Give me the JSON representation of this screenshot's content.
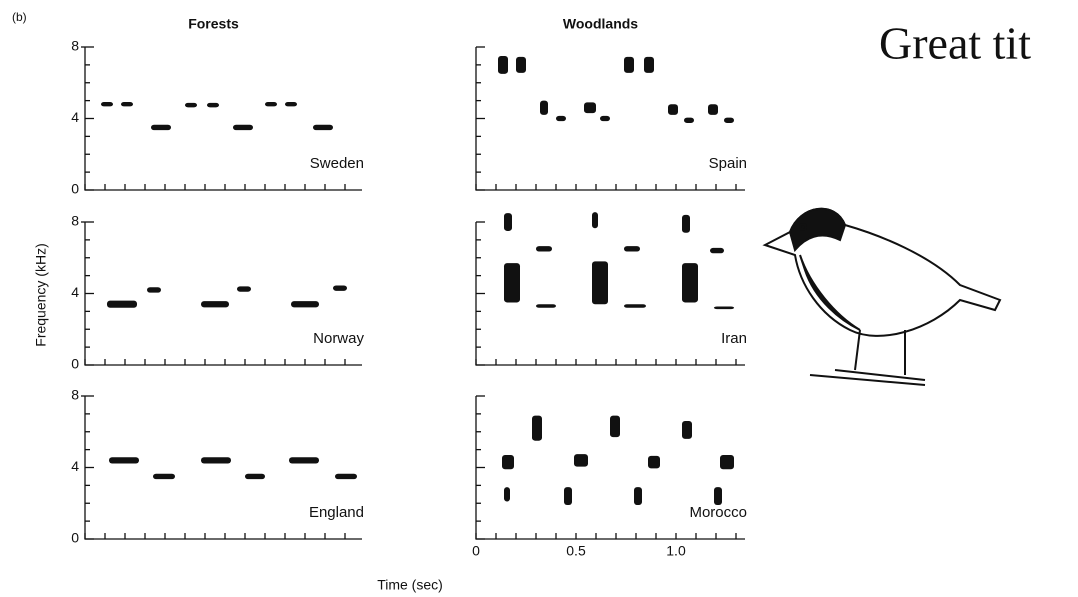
{
  "panel_tag": "(b)",
  "title": "Great tit",
  "y_axis_label": "Frequency (kHz)",
  "x_axis_label": "Time (sec)",
  "y_ticks": [
    "0",
    "4",
    "8"
  ],
  "x_ticks": [
    "0",
    "0.5",
    "1.0"
  ],
  "columns": [
    {
      "header": "Forests",
      "panels": [
        {
          "label": "Sweden"
        },
        {
          "label": "Norway"
        },
        {
          "label": "England"
        }
      ]
    },
    {
      "header": "Woodlands",
      "panels": [
        {
          "label": "Spain"
        },
        {
          "label": "Iran"
        },
        {
          "label": "Morocco"
        }
      ]
    }
  ]
}
